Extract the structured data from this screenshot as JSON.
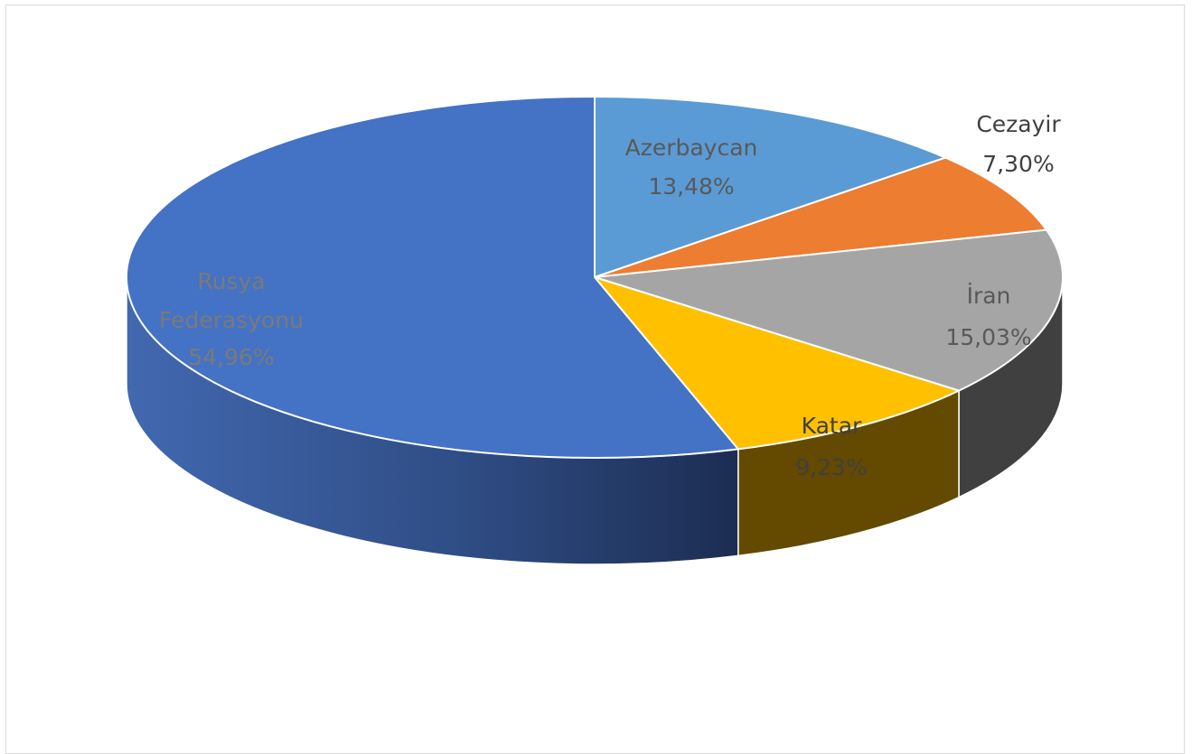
{
  "chart_data": {
    "type": "pie",
    "style": "3d",
    "title": "",
    "slices": [
      {
        "label": "Azerbaycan",
        "value": 13.48,
        "value_label": "13,48%",
        "color": "#5b9bd5",
        "label_color": "#595959"
      },
      {
        "label": "Cezayir",
        "value": 7.3,
        "value_label": "7,30%",
        "color": "#ed7d31",
        "label_color": "#404040"
      },
      {
        "label": "İran",
        "value": 15.03,
        "value_label": "15,03%",
        "color": "#a5a5a5",
        "label_color": "#595959"
      },
      {
        "label": "Katar",
        "value": 9.23,
        "value_label": "9,23%",
        "color": "#ffc000",
        "label_color": "#404040"
      },
      {
        "label": "Rusya Federasyonu",
        "value": 54.96,
        "value_label": "54,96%",
        "color": "#4472c4",
        "label_color": "#7a7a7a"
      }
    ],
    "start_angle": "top",
    "direction": "clockwise",
    "legend": "none",
    "data_labels": "category and percentage"
  }
}
